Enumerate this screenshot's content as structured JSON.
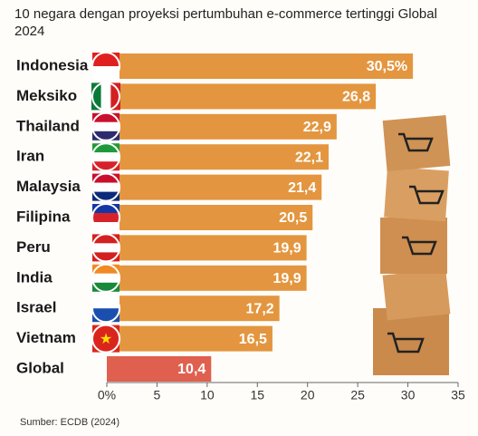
{
  "chart_data": {
    "type": "bar",
    "orientation": "horizontal",
    "title": "10 negara dengan proyeksi pertumbuhan e-commerce tertinggi Global 2024",
    "categories": [
      "Indonesia",
      "Meksiko",
      "Thailand",
      "Iran",
      "Malaysia",
      "Filipina",
      "Peru",
      "India",
      "Israel",
      "Vietnam",
      "Global"
    ],
    "values": [
      30.5,
      26.8,
      22.9,
      22.1,
      21.4,
      20.5,
      19.9,
      19.9,
      17.2,
      16.5,
      10.4
    ],
    "value_labels": [
      "30,5%",
      "26,8",
      "22,9",
      "22,1",
      "21,4",
      "20,5",
      "19,9",
      "19,9",
      "17,2",
      "16,5",
      "10,4"
    ],
    "colors": [
      "#e3963f",
      "#e3963f",
      "#e3963f",
      "#e3963f",
      "#e3963f",
      "#e3963f",
      "#e3963f",
      "#e3963f",
      "#e3963f",
      "#e3963f",
      "#e0604f"
    ],
    "xlim": [
      0,
      35
    ],
    "xticks": [
      {
        "value": 0,
        "label": "0%"
      },
      5,
      10,
      15,
      20,
      25,
      30,
      35
    ],
    "source": "Sumber: ECDB (2024)"
  }
}
